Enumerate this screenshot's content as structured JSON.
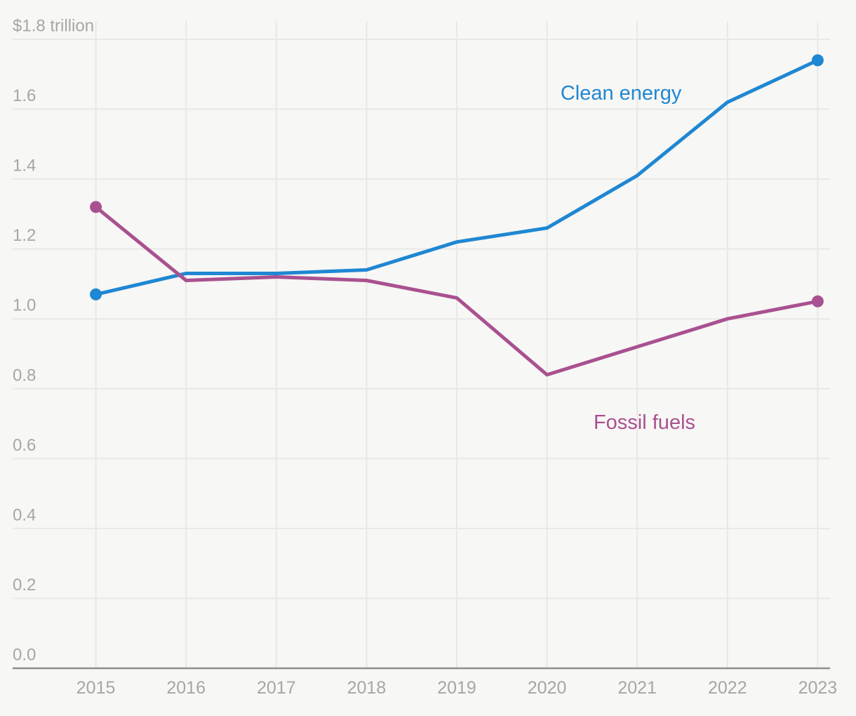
{
  "chart_data": {
    "type": "line",
    "title": "",
    "unit_label": "$1.8 trillion",
    "x": [
      2015,
      2016,
      2017,
      2018,
      2019,
      2020,
      2021,
      2022,
      2023
    ],
    "x_tick_labels": [
      "2015",
      "2016",
      "2017",
      "2018",
      "2019",
      "2020",
      "2021",
      "2022",
      "2023"
    ],
    "y_ticks": [
      0.0,
      0.2,
      0.4,
      0.6,
      0.8,
      1.0,
      1.2,
      1.4,
      1.6,
      1.8
    ],
    "y_tick_labels": [
      "0.0",
      "0.2",
      "0.4",
      "0.6",
      "0.8",
      "1.0",
      "1.2",
      "1.4",
      "1.6",
      "$1.8 trillion"
    ],
    "ylim": [
      0,
      1.8
    ],
    "grid": true,
    "legend_position": "inline-labels",
    "series": [
      {
        "name": "Clean energy",
        "color": "#1f87d3",
        "values": [
          1.07,
          1.13,
          1.13,
          1.14,
          1.22,
          1.26,
          1.41,
          1.62,
          1.74
        ],
        "markers_at": [
          2015,
          2023
        ],
        "label": {
          "text": "Clean energy",
          "x": 2020.82,
          "y": 1.645
        }
      },
      {
        "name": "Fossil fuels",
        "color": "#a95190",
        "values": [
          1.32,
          1.11,
          1.12,
          1.11,
          1.06,
          0.84,
          0.92,
          1.0,
          1.05
        ],
        "markers_at": [
          2015,
          2023
        ],
        "label": {
          "text": "Fossil fuels",
          "x": 2021.08,
          "y": 0.703
        }
      }
    ]
  },
  "colors": {
    "background": "#f7f7f5",
    "gridline": "#e8e8e6",
    "axis": "#8e8e8e",
    "tick_text": "#a6a6a6"
  }
}
